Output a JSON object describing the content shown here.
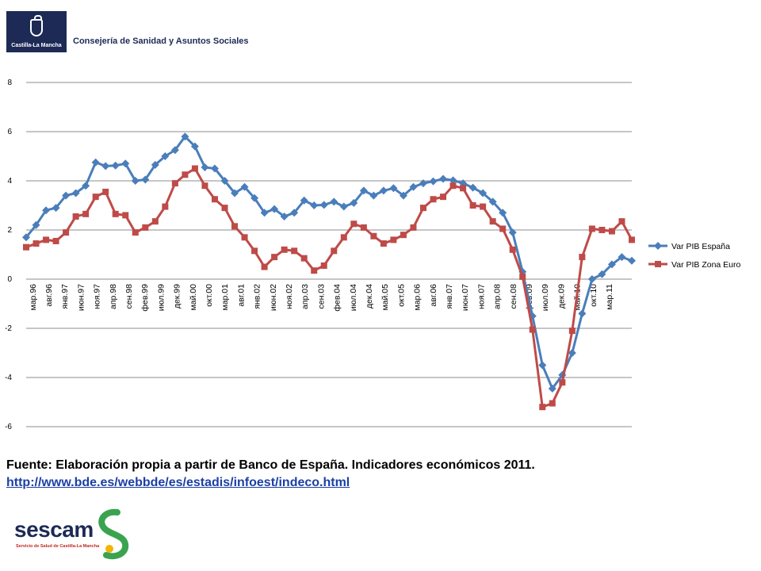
{
  "header": {
    "logo_text": "Castilla-La Mancha",
    "title": "Consejería de Sanidad y Asuntos Sociales"
  },
  "footer": {
    "source": "Fuente: Elaboración propia a partir de Banco de España. Indicadores económicos 2011.",
    "link": "http://www.bde.es/webbde/es/estadis/infoest/indeco.html",
    "sescam_logo": "sescam",
    "sescam_sub": "Servicio de Salud de Castilla-La Mancha"
  },
  "colors": {
    "spain": "#4a7ebb",
    "euro": "#be4b48",
    "grid": "#8c8c8c"
  },
  "chart_data": {
    "type": "line",
    "title": "",
    "xlabel": "",
    "ylabel": "",
    "ylim": [
      -6,
      8
    ],
    "yticks": [
      8,
      6,
      4,
      2,
      0,
      -2,
      -4,
      -6
    ],
    "grid": true,
    "legend": "right",
    "x_labels": [
      "мар.96",
      "авг.96",
      "янв.97",
      "июн.97",
      "ноя.97",
      "апр.98",
      "сен.98",
      "фев.99",
      "июл.99",
      "дек.99",
      "май.00",
      "окт.00",
      "мар.01",
      "авг.01",
      "янв.02",
      "июн.02",
      "ноя.02",
      "апр.03",
      "сен.03",
      "фев.04",
      "июл.04",
      "дек.04",
      "май.05",
      "окт.05",
      "мар.06",
      "авг.06",
      "янв.07",
      "июн.07",
      "ноя.07",
      "апр.08",
      "сен.08",
      "фев.09",
      "июл.09",
      "дек.09",
      "май.10",
      "окт.10",
      "мар.11"
    ],
    "series": [
      {
        "name": "Var PIB España",
        "values": [
          1.7,
          2.2,
          2.8,
          2.9,
          3.4,
          3.5,
          3.8,
          4.75,
          4.6,
          4.62,
          4.7,
          4.0,
          4.05,
          4.65,
          5.0,
          5.25,
          5.8,
          5.4,
          4.55,
          4.5,
          4.0,
          3.5,
          3.75,
          3.3,
          2.7,
          2.85,
          2.55,
          2.7,
          3.2,
          3.0,
          3.02,
          3.15,
          2.95,
          3.1,
          3.6,
          3.4,
          3.6,
          3.7,
          3.4,
          3.75,
          3.9,
          3.98,
          4.08,
          4.02,
          3.9,
          3.72,
          3.5,
          3.15,
          2.7,
          1.9,
          0.3,
          -1.5,
          -3.5,
          -4.45,
          -3.9,
          -3.0,
          -1.4,
          0.0,
          0.2,
          0.6,
          0.9,
          0.75
        ]
      },
      {
        "name": "Var PIB Zona Euro",
        "values": [
          1.3,
          1.45,
          1.6,
          1.55,
          1.9,
          2.55,
          2.65,
          3.35,
          3.55,
          2.65,
          2.6,
          1.9,
          2.1,
          2.35,
          2.95,
          3.9,
          4.25,
          4.5,
          3.8,
          3.25,
          2.9,
          2.15,
          1.7,
          1.15,
          0.5,
          0.9,
          1.2,
          1.15,
          0.85,
          0.35,
          0.55,
          1.15,
          1.7,
          2.25,
          2.1,
          1.75,
          1.45,
          1.6,
          1.8,
          2.1,
          2.9,
          3.25,
          3.35,
          3.8,
          3.7,
          3.0,
          2.95,
          2.35,
          2.05,
          1.2,
          0.1,
          -2.05,
          -5.2,
          -5.05,
          -4.2,
          -2.1,
          0.9,
          2.05,
          2.0,
          1.95,
          2.35,
          1.6
        ]
      }
    ]
  }
}
